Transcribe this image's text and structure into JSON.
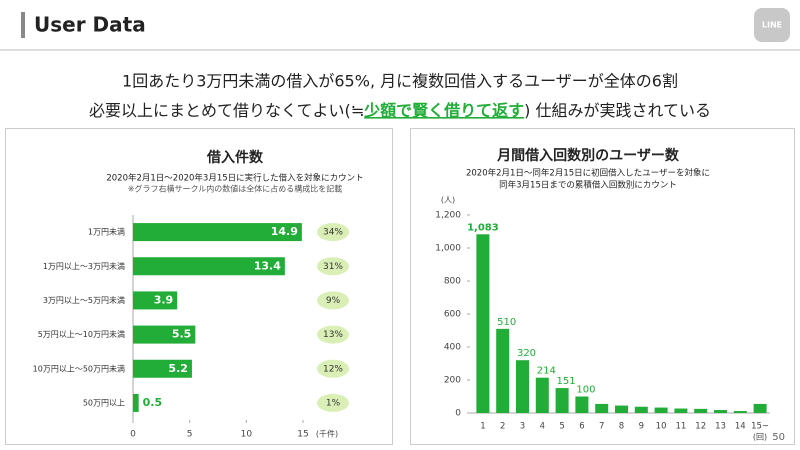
{
  "header": {
    "title": "User Data",
    "logo": "LINE",
    "page_number": "50"
  },
  "headline": {
    "line1": "1回あたり3万円未満の借入が65%, 月に複数回借入するユーザーが全体の6割",
    "line2_before": "必要以上にまとめて借りなくてよい(≒",
    "line2_highlight": "少額で賢く借りて返す",
    "line2_after": ") 仕組みが実践されている"
  },
  "chart_data": [
    {
      "type": "hbar",
      "title": "借入件数",
      "subtitle": [
        "2020年2月1日～2020年3月15日に実行した借入を対象にカウント"
      ],
      "note": "※グラフ右横サークル内の数値は全体に占める構成比を記載",
      "categories": [
        "1万円未満",
        "1万円以上～3万円未満",
        "3万円以上～5万円未満",
        "5万円以上～10万円未満",
        "10万円以上～50万円未満",
        "50万円以上"
      ],
      "values": [
        14.9,
        13.4,
        3.9,
        5.5,
        5.2,
        0.5
      ],
      "shares": [
        34,
        31,
        9,
        13,
        12,
        1
      ],
      "share_labels": [
        "34%",
        "31%",
        "9%",
        "13%",
        "12%",
        "1%"
      ],
      "color": "#22ac38",
      "xlim": [
        0,
        15
      ],
      "xticks": [
        0,
        5,
        10,
        15
      ],
      "x_unit": "(千件)"
    },
    {
      "type": "bar",
      "title": "月間借入回数別のユーザー数",
      "subtitle": [
        "2020年2月1日～同年2月15日に初回借入したユーザーを対象に",
        "同年3月15日までの累積借入回数別にカウント"
      ],
      "categories": [
        "1",
        "2",
        "3",
        "4",
        "5",
        "6",
        "7",
        "8",
        "9",
        "10",
        "11",
        "12",
        "13",
        "14",
        "15~"
      ],
      "values": [
        1083,
        510,
        320,
        214,
        151,
        100,
        55,
        45,
        38,
        33,
        27,
        25,
        18,
        12,
        55
      ],
      "value_labels": [
        "1,083",
        "510",
        "320",
        "214",
        "151",
        "100",
        null,
        null,
        null,
        null,
        null,
        null,
        null,
        null,
        null
      ],
      "color": "#22ac38",
      "ylim": [
        0,
        1200
      ],
      "yticks": [
        0,
        200,
        400,
        600,
        800,
        {
          "value": 1000,
          "label": "1,000"
        },
        {
          "value": 1200,
          "label": "1,200"
        }
      ],
      "y_unit": "(人)",
      "x_unit": "(回)"
    }
  ]
}
